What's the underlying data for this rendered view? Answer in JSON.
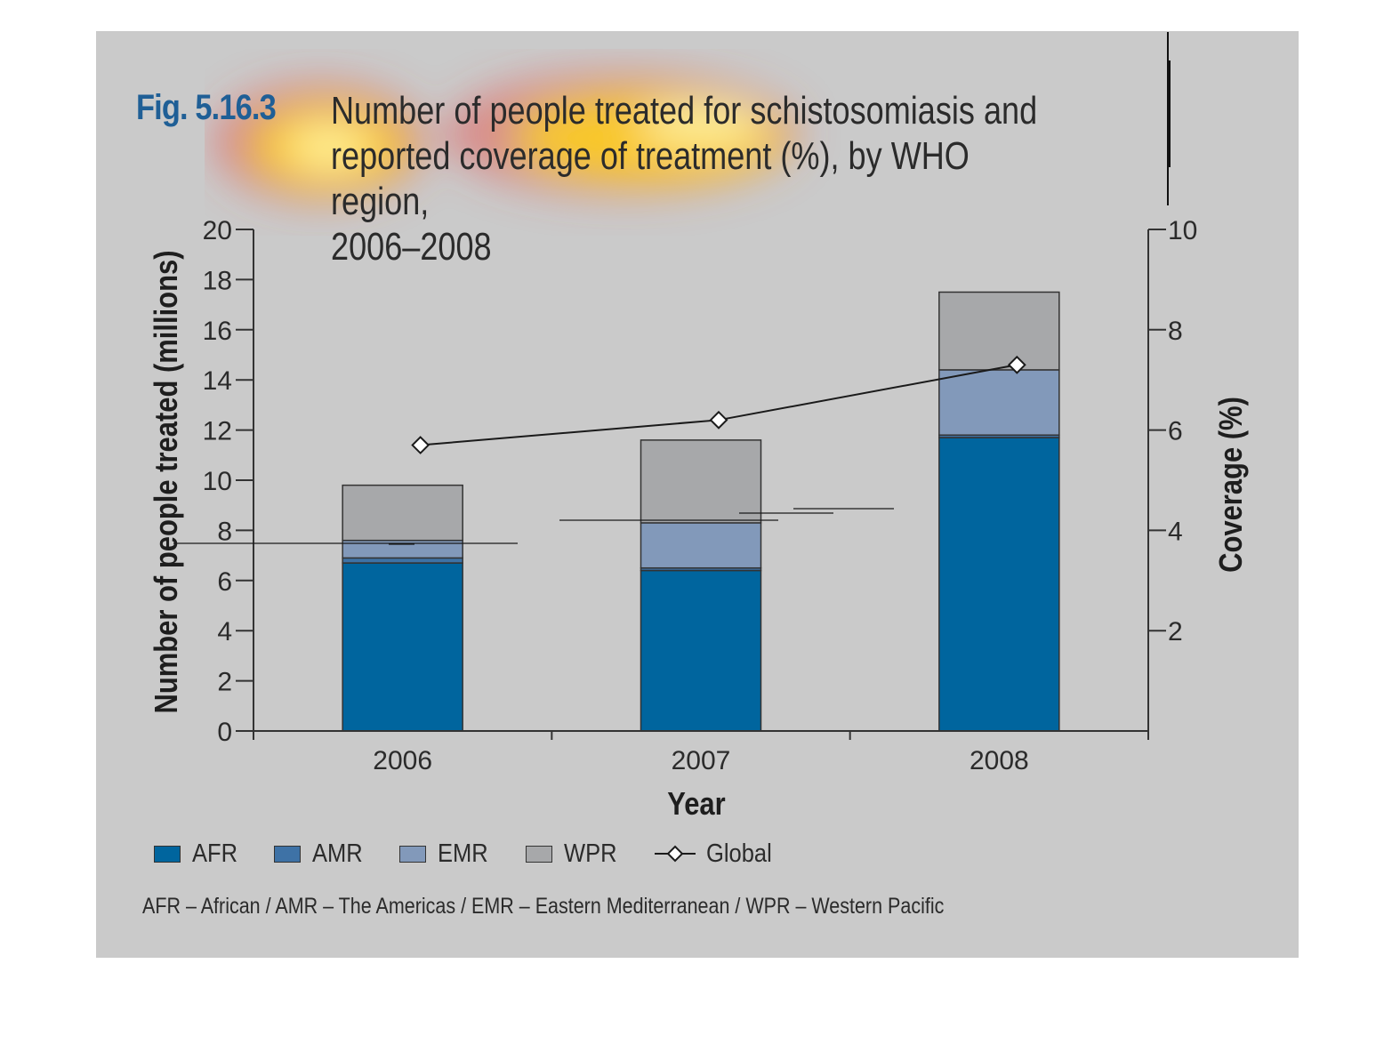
{
  "figure": {
    "number": "Fig. 5.16.3",
    "title": "Number of people treated for schistosomiasis and\nreported coverage of treatment (%), by WHO region,\n2006–2008",
    "footnote": "AFR – African / AMR – The Americas / EMR – Eastern Mediterranean / WPR – Western Pacific"
  },
  "colors": {
    "panel_background": "#cacaca",
    "AFR": "#00659e",
    "AMR": "#3e72a6",
    "EMR": "#8299ba",
    "WPR": "#a7a8aa",
    "global_line": "#1a1a1a",
    "title_number": "#1f5f96"
  },
  "legend": {
    "position": "bottom-left",
    "items": [
      {
        "label": "AFR",
        "icon": "swatch",
        "color": "#00659e"
      },
      {
        "label": "AMR",
        "icon": "swatch",
        "color": "#3e72a6"
      },
      {
        "label": "EMR",
        "icon": "swatch",
        "color": "#8299ba"
      },
      {
        "label": "WPR",
        "icon": "swatch",
        "color": "#a7a8aa"
      },
      {
        "label": "Global",
        "icon": "line-diamond",
        "color": "#1a1a1a"
      }
    ]
  },
  "chart_data": {
    "type": "bar",
    "stacked": true,
    "grid": false,
    "categories": [
      "2006",
      "2007",
      "2008"
    ],
    "xlabel": "Year",
    "ylabel": "Number of people treated (millions)",
    "ylim": [
      0,
      20
    ],
    "yticks": [
      0,
      2,
      4,
      6,
      8,
      10,
      12,
      14,
      16,
      18,
      20
    ],
    "y2label": "Coverage (%)",
    "y2lim": [
      0,
      10
    ],
    "y2ticks": [
      2,
      4,
      6,
      8,
      10
    ],
    "series": [
      {
        "name": "AFR",
        "values": [
          6.7,
          6.4,
          11.7
        ]
      },
      {
        "name": "AMR",
        "values": [
          0.2,
          0.1,
          0.1
        ]
      },
      {
        "name": "EMR",
        "values": [
          0.7,
          1.8,
          2.6
        ]
      },
      {
        "name": "WPR",
        "values": [
          2.2,
          3.3,
          3.1
        ]
      }
    ],
    "line_series": {
      "name": "Global",
      "axis": "right",
      "values": [
        5.7,
        6.2,
        7.3
      ]
    }
  }
}
